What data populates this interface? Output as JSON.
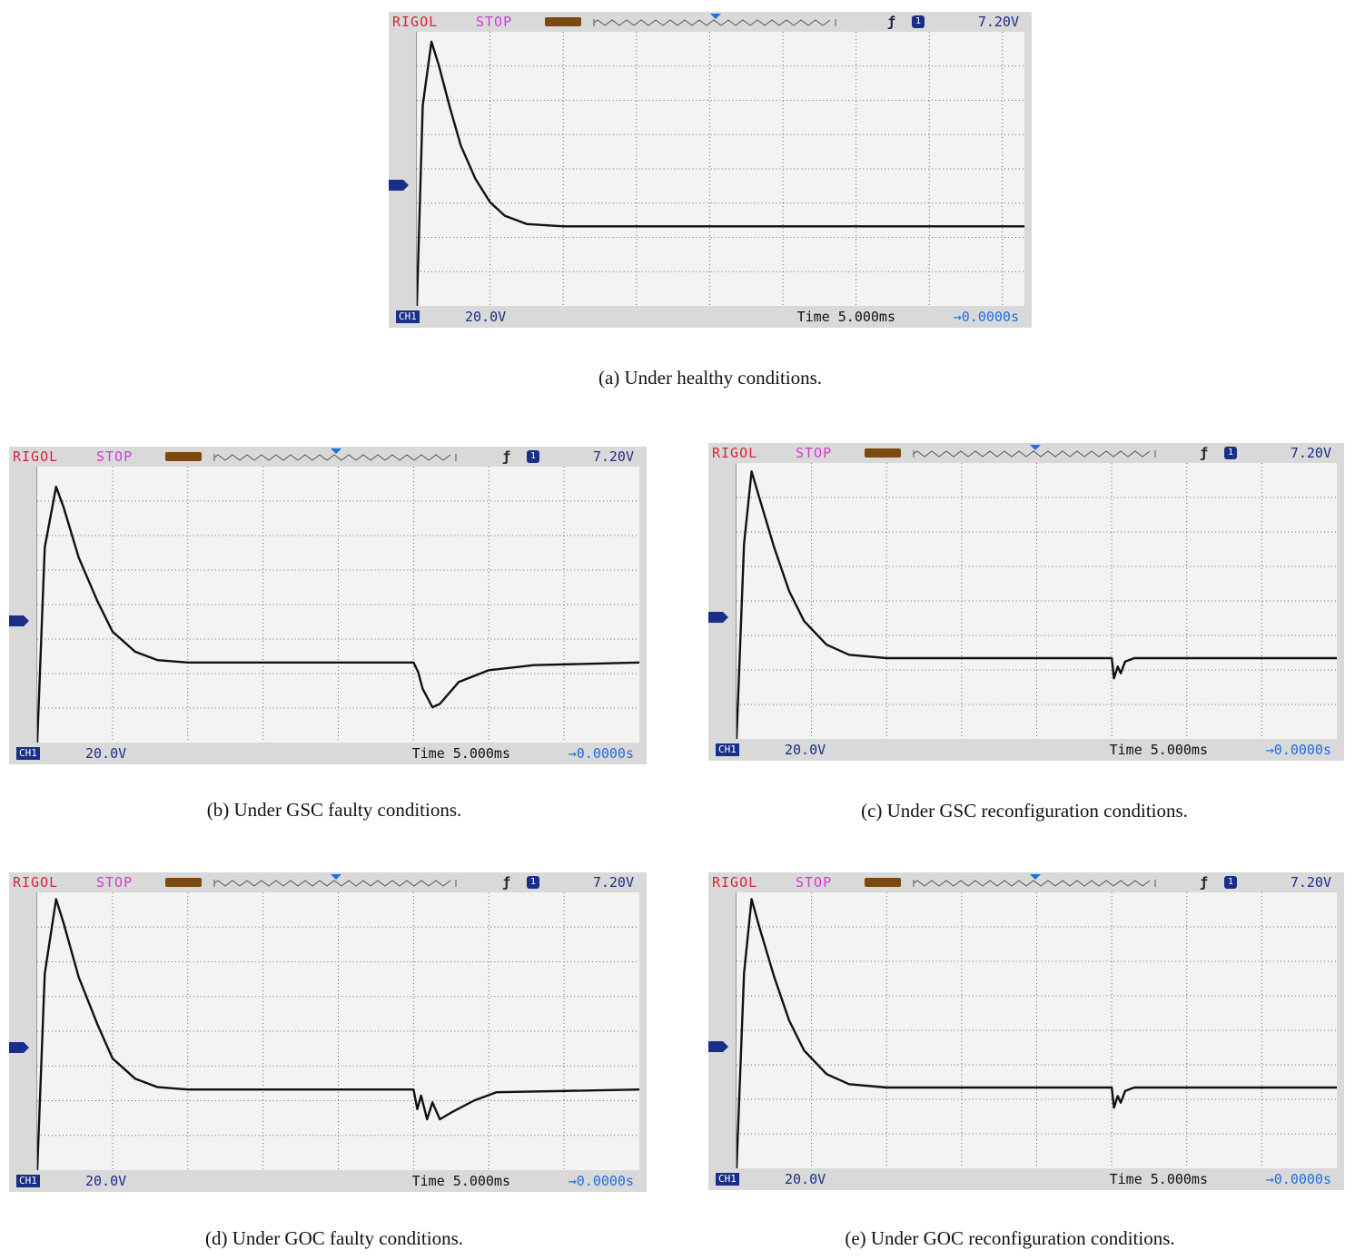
{
  "scope": {
    "brand": "RIGOL",
    "state": "STOP",
    "edge_glyph": "ƒ",
    "channel_badge": "1",
    "trigger_level": "7.20V",
    "channel_label": "CH1",
    "volts_div": "20.0V",
    "time_div": "Time 5.000ms",
    "time_offset": "→0.0000s"
  },
  "chart_data": [
    {
      "type": "line",
      "title": "",
      "caption": "(a) Under healthy conditions.",
      "xlabel": "",
      "ylabel": "",
      "xlim": [
        0,
        8.3
      ],
      "ylim": [
        -4,
        4.2
      ],
      "grid": true,
      "series": [
        {
          "values": [
            [
              0.0,
              -4.0
            ],
            [
              0.08,
              2.0
            ],
            [
              0.2,
              3.9
            ],
            [
              0.3,
              3.2
            ],
            [
              0.45,
              1.95
            ],
            [
              0.6,
              0.8
            ],
            [
              0.8,
              -0.2
            ],
            [
              1.0,
              -0.9
            ],
            [
              1.2,
              -1.3
            ],
            [
              1.5,
              -1.55
            ],
            [
              2.0,
              -1.62
            ],
            [
              8.3,
              -1.62
            ]
          ]
        }
      ]
    },
    {
      "type": "line",
      "title": "",
      "caption": "(b) Under GSC faulty conditions.",
      "xlabel": "",
      "ylabel": "",
      "xlim": [
        0,
        8.0
      ],
      "ylim": [
        -4,
        4.2
      ],
      "grid": true,
      "series": [
        {
          "values": [
            [
              0.0,
              -4.0
            ],
            [
              0.1,
              1.8
            ],
            [
              0.25,
              3.6
            ],
            [
              0.35,
              3.0
            ],
            [
              0.55,
              1.5
            ],
            [
              0.8,
              0.2
            ],
            [
              1.0,
              -0.7
            ],
            [
              1.3,
              -1.3
            ],
            [
              1.6,
              -1.55
            ],
            [
              2.0,
              -1.62
            ],
            [
              5.0,
              -1.62
            ],
            [
              5.06,
              -1.9
            ],
            [
              5.12,
              -2.4
            ],
            [
              5.25,
              -2.95
            ],
            [
              5.35,
              -2.85
            ],
            [
              5.6,
              -2.2
            ],
            [
              6.0,
              -1.85
            ],
            [
              6.6,
              -1.7
            ],
            [
              8.0,
              -1.62
            ]
          ]
        }
      ]
    },
    {
      "type": "line",
      "title": "",
      "caption": "(c) Under GSC reconfiguration conditions.",
      "xlabel": "",
      "ylabel": "",
      "xlim": [
        0,
        8.0
      ],
      "ylim": [
        -4,
        4.2
      ],
      "grid": true,
      "series": [
        {
          "values": [
            [
              0.0,
              -4.0
            ],
            [
              0.1,
              1.8
            ],
            [
              0.2,
              3.95
            ],
            [
              0.3,
              3.2
            ],
            [
              0.5,
              1.7
            ],
            [
              0.7,
              0.4
            ],
            [
              0.9,
              -0.5
            ],
            [
              1.2,
              -1.2
            ],
            [
              1.5,
              -1.5
            ],
            [
              2.0,
              -1.6
            ],
            [
              5.0,
              -1.6
            ],
            [
              5.03,
              -2.2
            ],
            [
              5.08,
              -1.85
            ],
            [
              5.12,
              -2.05
            ],
            [
              5.18,
              -1.7
            ],
            [
              5.3,
              -1.6
            ],
            [
              8.0,
              -1.6
            ]
          ]
        }
      ]
    },
    {
      "type": "line",
      "title": "",
      "caption": "(d) Under GOC faulty conditions.",
      "xlabel": "",
      "ylabel": "",
      "xlim": [
        0,
        8.0
      ],
      "ylim": [
        -4,
        4.2
      ],
      "grid": true,
      "series": [
        {
          "values": [
            [
              0.0,
              -4.0
            ],
            [
              0.1,
              1.8
            ],
            [
              0.25,
              4.0
            ],
            [
              0.35,
              3.3
            ],
            [
              0.55,
              1.7
            ],
            [
              0.8,
              0.3
            ],
            [
              1.0,
              -0.7
            ],
            [
              1.3,
              -1.3
            ],
            [
              1.6,
              -1.55
            ],
            [
              2.0,
              -1.62
            ],
            [
              5.0,
              -1.62
            ],
            [
              5.05,
              -2.2
            ],
            [
              5.1,
              -1.8
            ],
            [
              5.18,
              -2.5
            ],
            [
              5.25,
              -2.0
            ],
            [
              5.35,
              -2.5
            ],
            [
              5.5,
              -2.3
            ],
            [
              5.8,
              -1.95
            ],
            [
              6.1,
              -1.7
            ],
            [
              8.0,
              -1.62
            ]
          ]
        }
      ]
    },
    {
      "type": "line",
      "title": "",
      "caption": "(e) Under GOC reconfiguration conditions.",
      "xlabel": "",
      "ylabel": "",
      "xlim": [
        0,
        8.0
      ],
      "ylim": [
        -4,
        4.2
      ],
      "grid": true,
      "series": [
        {
          "values": [
            [
              0.0,
              -4.0
            ],
            [
              0.1,
              1.8
            ],
            [
              0.2,
              4.0
            ],
            [
              0.3,
              3.2
            ],
            [
              0.5,
              1.7
            ],
            [
              0.7,
              0.4
            ],
            [
              0.9,
              -0.5
            ],
            [
              1.2,
              -1.2
            ],
            [
              1.5,
              -1.5
            ],
            [
              2.0,
              -1.6
            ],
            [
              5.0,
              -1.6
            ],
            [
              5.03,
              -2.2
            ],
            [
              5.08,
              -1.85
            ],
            [
              5.12,
              -2.05
            ],
            [
              5.18,
              -1.7
            ],
            [
              5.3,
              -1.6
            ],
            [
              8.0,
              -1.6
            ]
          ]
        }
      ]
    }
  ]
}
